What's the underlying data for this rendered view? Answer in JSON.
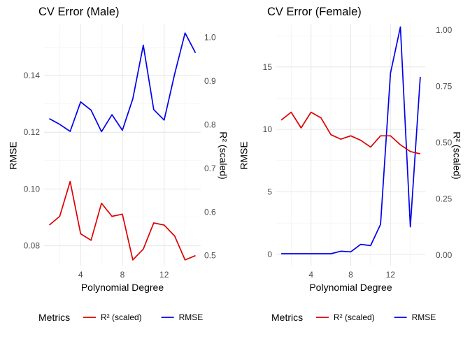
{
  "chart_data": [
    {
      "type": "line",
      "title": "CV Error (Male)",
      "xlabel": "Polynomial Degree",
      "ylabel": "RMSE",
      "y2label": "R² (scaled)",
      "xlim": [
        0.5,
        15.5
      ],
      "ylim": [
        0.073,
        0.158
      ],
      "y2lim": [
        0.477,
        1.03
      ],
      "xticks": [
        4,
        8,
        12
      ],
      "yticks": [
        0.08,
        0.1,
        0.12,
        0.14
      ],
      "y2ticks": [
        0.5,
        0.6,
        0.7,
        0.8,
        0.9,
        1.0
      ],
      "x": [
        1,
        2,
        3,
        4,
        5,
        6,
        7,
        8,
        9,
        10,
        11,
        12,
        13,
        14,
        15
      ],
      "grid": true,
      "series": [
        {
          "name": "RMSE",
          "axis": "left",
          "color": "#0000ee",
          "values": [
            0.1248,
            0.1228,
            0.1203,
            0.1307,
            0.1278,
            0.1202,
            0.1262,
            0.1207,
            0.1318,
            0.1507,
            0.128,
            0.1243,
            0.1405,
            0.155,
            0.148
          ]
        },
        {
          "name": "R² (scaled)",
          "axis": "right",
          "color": "#dd0000",
          "values": [
            0.57,
            0.59,
            0.67,
            0.55,
            0.535,
            0.62,
            0.59,
            0.595,
            0.49,
            0.515,
            0.575,
            0.57,
            0.545,
            0.49,
            0.5
          ]
        }
      ],
      "legend": {
        "title": "Metrics",
        "items": [
          "R² (scaled)",
          "RMSE"
        ],
        "position": "bottom"
      }
    },
    {
      "type": "line",
      "title": "CV Error (Female)",
      "xlabel": "Polynomial Degree",
      "ylabel": "RMSE",
      "y2label": "R² (scaled)",
      "xlim": [
        0.5,
        15.5
      ],
      "ylim": [
        -0.9,
        18.4
      ],
      "y2lim": [
        -0.047,
        1.025
      ],
      "xticks": [
        4,
        8,
        12
      ],
      "yticks": [
        0,
        5,
        10,
        15
      ],
      "y2ticks": [
        0,
        0.25,
        0.5,
        0.75,
        1.0
      ],
      "y2ticklabels": [
        "0.00",
        "0.25",
        "0.50",
        "0.75",
        "1.00"
      ],
      "x": [
        1,
        2,
        3,
        4,
        5,
        6,
        7,
        8,
        9,
        10,
        11,
        12,
        13,
        14,
        15
      ],
      "grid": true,
      "series": [
        {
          "name": "RMSE",
          "axis": "left",
          "color": "#0000ee",
          "values": [
            0.05,
            0.05,
            0.05,
            0.05,
            0.05,
            0.05,
            0.25,
            0.2,
            0.8,
            0.7,
            2.4,
            14.5,
            18.2,
            2.2,
            14.2
          ]
        },
        {
          "name": "R² (scaled)",
          "axis": "right",
          "color": "#dd0000",
          "values": [
            0.6,
            0.635,
            0.565,
            0.635,
            0.61,
            0.535,
            0.515,
            0.53,
            0.51,
            0.48,
            0.53,
            0.53,
            0.49,
            0.46,
            0.45
          ]
        }
      ],
      "legend": {
        "title": "Metrics",
        "items": [
          "R² (scaled)",
          "RMSE"
        ],
        "position": "bottom"
      }
    }
  ]
}
